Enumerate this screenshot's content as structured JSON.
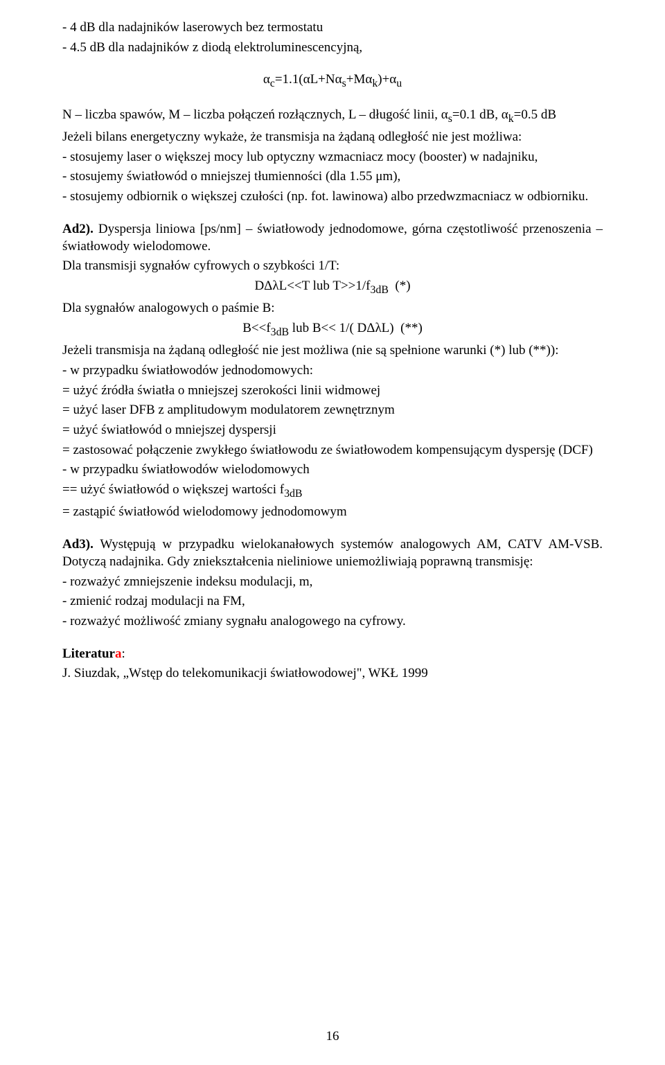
{
  "colors": {
    "text": "#000000",
    "red": "#ff0000",
    "background": "#ffffff"
  },
  "typography": {
    "font_family": "Times New Roman",
    "body_fontsize_pt": 14,
    "line_height": 1.3
  },
  "intro": {
    "l1": "- 4 dB dla nadajników laserowych bez termostatu",
    "l2": "- 4.5 dB dla nadajników z diodą elektroluminescencyjną,",
    "formula": "αc=1.1(αL+Nαs+Mαk)+αu",
    "formula_sub_indices": [
      "c",
      "s",
      "k",
      "u"
    ],
    "l3": "N – liczba spawów, M – liczba połączeń rozłącznych, L – długość linii, αs=0.1 dB, αk=0.5 dB",
    "l4": "Jeżeli bilans energetyczny wykaże, że transmisja na żądaną odległość nie jest możliwa:",
    "l5": "- stosujemy laser o większej mocy lub optyczny wzmacniacz mocy (booster) w nadajniku,",
    "l6": "- stosujemy światłowód o mniejszej tłumienności (dla 1.55 μm),",
    "l7": "- stosujemy odbiornik o większej czułości (np. fot. lawinowa) albo przedwzmacniacz w odbiorniku."
  },
  "ad2": {
    "head_bold": "Ad2).",
    "head_rest": " Dyspersja liniowa [ps/nm] – światłowody jednodomowe, górna częstotliwość przenoszenia – światłowody wielodomowe.",
    "l1": "Dla transmisji sygnałów cyfrowych o szybkości 1/T:",
    "f1": "DΔλL<<T lub T>>1/f3dB  (*)",
    "l2": "Dla sygnałów analogowych o paśmie B:",
    "f2": "B<<f3dB lub B<< 1/( DΔλL)  (**)",
    "l3": "Jeżeli transmisja na żądaną odległość nie jest możliwa (nie są spełnione warunki (*) lub (**)):",
    "l4": "- w przypadku światłowodów jednodomowych:",
    "l5": "= użyć źródła światła o mniejszej szerokości linii widmowej",
    "l6": "= użyć laser DFB z amplitudowym modulatorem zewnętrznym",
    "l7": "= użyć światłowód o mniejszej dyspersji",
    "l8": "= zastosować połączenie zwykłego światłowodu ze światłowodem kompensującym dyspersję (DCF)",
    "l9": "- w przypadku światłowodów wielodomowych",
    "l10": "== użyć światłowód o większej wartości f3dB",
    "l11": "= zastąpić światłowód wielodomowy jednodomowym"
  },
  "ad3": {
    "head_bold": "Ad3).",
    "head_rest": " Występują w przypadku wielokanałowych systemów analogowych AM, CATV AM-VSB. Dotyczą nadajnika. Gdy zniekształcenia nieliniowe uniemożliwiają poprawną transmisję:",
    "l1": "- rozważyć zmniejszenie indeksu modulacji, m,",
    "l2": "- zmienić rodzaj modulacji na FM,",
    "l3": "- rozważyć możliwość zmiany sygnału analogowego na cyfrowy."
  },
  "lit": {
    "head_pre": "Literatur",
    "head_red": "a",
    "head_post": ":",
    "l1": "J. Siuzdak, „Wstęp do telekomunikacji światłowodowej\",  WKŁ 1999"
  },
  "page_number": "16"
}
